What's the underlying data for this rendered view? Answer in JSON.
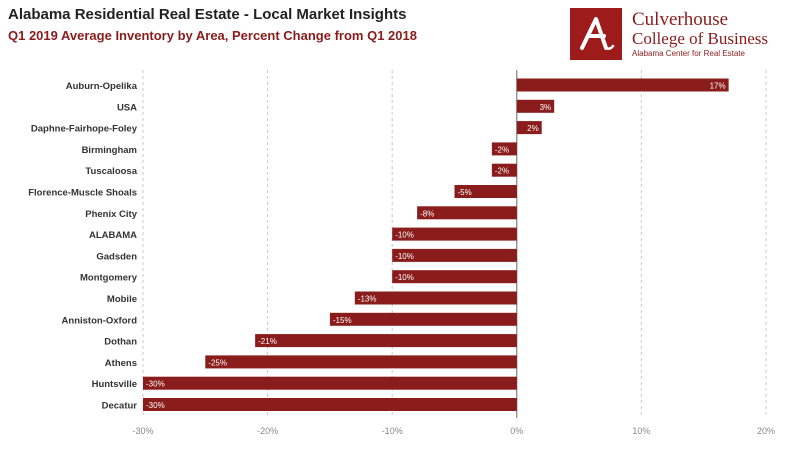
{
  "chart_data": {
    "type": "bar",
    "orientation": "horizontal",
    "title": "Alabama Residential Real Estate - Local Market Insights",
    "subtitle": "Q1 2019 Average Inventory by Area, Percent Change from Q1 2018",
    "categories": [
      "Auburn-Opelika",
      "USA",
      "Daphne-Fairhope-Foley",
      "Birmingham",
      "Tuscaloosa",
      "Florence-Muscle Shoals",
      "Phenix City",
      "ALABAMA",
      "Gadsden",
      "Montgomery",
      "Mobile",
      "Anniston-Oxford",
      "Dothan",
      "Athens",
      "Huntsville",
      "Decatur"
    ],
    "values": [
      17,
      3,
      2,
      -2,
      -2,
      -5,
      -8,
      -10,
      -10,
      -10,
      -13,
      -15,
      -21,
      -25,
      -30,
      -30
    ],
    "data_labels": [
      "17%",
      "3%",
      "2%",
      "-2%",
      "-2%",
      "-5%",
      "-8%",
      "-10%",
      "-10%",
      "-10%",
      "-13%",
      "-15%",
      "-21%",
      "-25%",
      "-30%",
      "-30%"
    ],
    "xlim": [
      -30,
      20
    ],
    "xticks": [
      -30,
      -20,
      -10,
      0,
      10,
      20
    ],
    "xtick_labels": [
      "-30%",
      "-20%",
      "-10%",
      "0%",
      "10%",
      "20%"
    ],
    "grid": "vertical dashed",
    "bar_color": "#8a1c1c",
    "xlabel": "",
    "ylabel": ""
  },
  "logo": {
    "line1": "Culverhouse",
    "line2": "College of Business",
    "line3": "Alabama Center for Real Estate",
    "icon": "script-a-icon",
    "color": "#9e1b1b"
  }
}
